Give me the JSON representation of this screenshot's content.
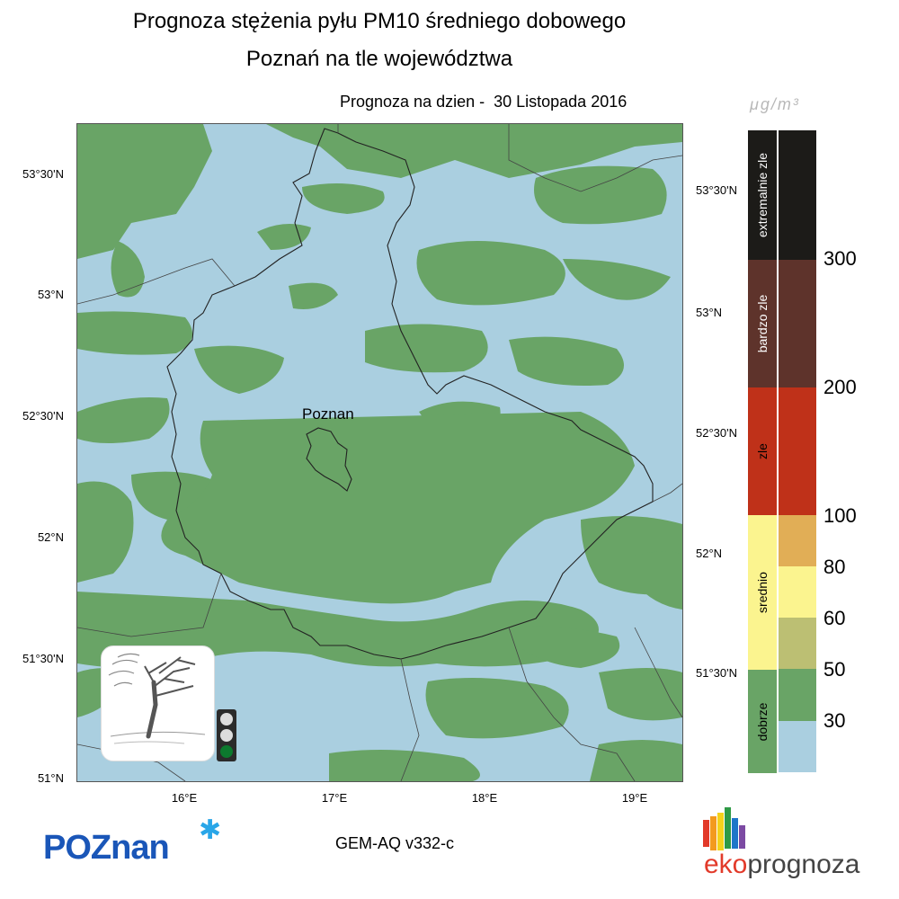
{
  "header": {
    "title_line1": "Prognoza stężenia pyłu PM10 średniego dobowego",
    "title_line2": "Poznań na tle województwa",
    "forecast_date": "Prognoza na dzien -  30 Listopada 2016"
  },
  "map": {
    "city_label": "Poznan",
    "lat_labels_left": [
      "53°30'N",
      "53°N",
      "52°30'N",
      "52°N",
      "51°30'N",
      "51°N"
    ],
    "lat_labels_right": [
      "53°30'N",
      "53°N",
      "52°30'N",
      "52°N",
      "51°30'N"
    ],
    "lon_labels": [
      "16°E",
      "17°E",
      "18°E",
      "19°E"
    ],
    "colors": {
      "clean": "#aacfe0",
      "good": "#69a466",
      "border": "#222222"
    },
    "icons": [
      "wind-tree-icon",
      "traffic-light-icon"
    ],
    "traffic_light_active": "green"
  },
  "legend": {
    "unit": "μg/m³",
    "categories": [
      {
        "label": "extremalnie zle",
        "color": "#1c1b18",
        "text_color": "#ffffff"
      },
      {
        "label": "bardzo zle",
        "color": "#5e332b",
        "text_color": "#ffffff"
      },
      {
        "label": "zle",
        "color": "#bf3119",
        "text_color": "#000000"
      },
      {
        "label": "srednio",
        "color": "#fbf48f",
        "text_color": "#000000"
      },
      {
        "label": "dobrze",
        "color": "#69a466",
        "text_color": "#000000"
      }
    ],
    "value_colors": [
      "#1c1b18",
      "#5e332b",
      "#bf3119",
      "#e1ae56",
      "#fbf48f",
      "#bcbf73",
      "#69a466",
      "#aacfe0"
    ],
    "tick_labels": [
      "300",
      "200",
      "100",
      "80",
      "60",
      "50",
      "30"
    ]
  },
  "footer": {
    "poznan_logo_main": "POZnan",
    "model": "GEM-AQ v332-c",
    "eko_logo_part1": "eko",
    "eko_logo_part2": "prognoza",
    "eko_bar_colors": [
      "#e23a2a",
      "#f39a1e",
      "#f4d21b",
      "#2e9a45",
      "#1f76c9",
      "#7c4aa3"
    ]
  }
}
